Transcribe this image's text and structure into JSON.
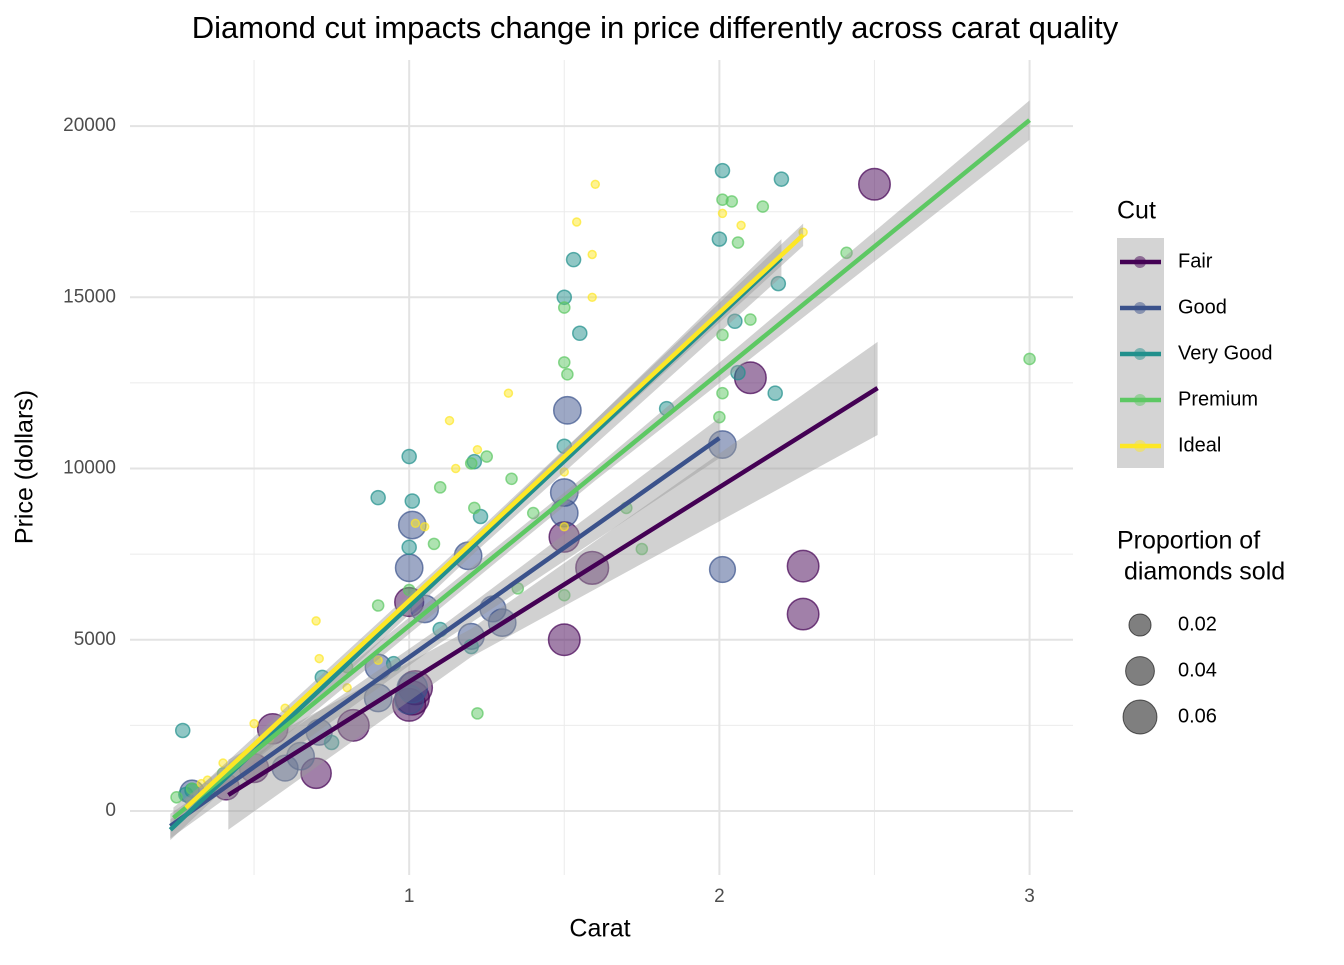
{
  "chart_data": {
    "type": "scatter",
    "title": "Diamond cut impacts change in price differently across carat quality",
    "x_label": "Carat",
    "y_label": "Price (dollars)",
    "xlim": [
      0.1,
      3.14
    ],
    "ylim": [
      -1870,
      21930
    ],
    "xticks": [
      1,
      2,
      3
    ],
    "yticks": [
      0,
      5000,
      10000,
      15000,
      20000
    ],
    "xminor": [
      0.5,
      1.5,
      2.5
    ],
    "yminor": [
      2500,
      7500,
      12500,
      17500
    ],
    "grid": true,
    "legend_title": "Cut",
    "size_legend_title": [
      "Proportion of",
      " diamonds sold"
    ],
    "size_legend": [
      0.02,
      0.04,
      0.06
    ],
    "series": [
      {
        "name": "Fair",
        "color": "#440154",
        "x": [
          2.5,
          2.1,
          2.27,
          2.27,
          1.5,
          1.59,
          1.5,
          1.01,
          1.0,
          1.02,
          0.7,
          0.82,
          0.56,
          0.5,
          0.41,
          1.0
        ],
        "values": [
          18300,
          12650,
          7150,
          5750,
          8000,
          7100,
          5000,
          3300,
          3100,
          3600,
          1100,
          2500,
          2400,
          1250,
          700,
          6100
        ],
        "sizes": [
          0.05,
          0.05,
          0.05,
          0.05,
          0.045,
          0.055,
          0.05,
          0.06,
          0.055,
          0.06,
          0.045,
          0.05,
          0.045,
          0.04,
          0.03,
          0.04
        ],
        "fit": {
          "x": [
            0.417,
            1.2,
            2.51
          ],
          "y": [
            467,
            4912,
            12350
          ],
          "lower": [
            -550,
            4500,
            10980
          ],
          "upper": [
            1500,
            5320,
            13700
          ]
        }
      },
      {
        "name": "Good",
        "color": "#3b528b",
        "x": [
          1.51,
          2.01,
          2.01,
          1.5,
          1.5,
          1.01,
          1.0,
          1.19,
          1.05,
          1.3,
          1.27,
          1.01,
          1.0,
          0.9,
          0.6,
          0.65,
          0.71,
          0.3,
          0.9,
          1.2
        ],
        "values": [
          11700,
          10700,
          7050,
          9300,
          8700,
          8350,
          7100,
          7450,
          5900,
          5500,
          5900,
          3600,
          3250,
          3300,
          1250,
          1600,
          2300,
          550,
          4200,
          5100
        ],
        "sizes": [
          0.035,
          0.035,
          0.03,
          0.035,
          0.035,
          0.035,
          0.035,
          0.035,
          0.035,
          0.035,
          0.03,
          0.045,
          0.04,
          0.035,
          0.03,
          0.035,
          0.03,
          0.025,
          0.03,
          0.03
        ],
        "fit": {
          "x": [
            0.23,
            1.1,
            2.0
          ],
          "y": [
            -440,
            5129,
            10890
          ],
          "lower": [
            -800,
            4900,
            10300
          ],
          "upper": [
            -80,
            5360,
            11480
          ]
        }
      },
      {
        "name": "Very Good",
        "color": "#21908c",
        "x": [
          2.01,
          2.2,
          2.0,
          1.53,
          1.5,
          1.55,
          2.05,
          2.19,
          1.83,
          2.18,
          2.06,
          1.5,
          1.0,
          0.9,
          1.01,
          1.21,
          1.23,
          1.0,
          1.2,
          0.72,
          0.27,
          0.75,
          0.3,
          0.28,
          1.1,
          0.95
        ],
        "values": [
          18700,
          18450,
          16700,
          16100,
          15000,
          13950,
          14300,
          15400,
          11750,
          12200,
          12800,
          10650,
          10350,
          9150,
          9050,
          10200,
          8600,
          7700,
          4800,
          3900,
          2350,
          2000,
          600,
          480,
          5300,
          4300
        ],
        "sizes": [
          0.005,
          0.005,
          0.005,
          0.005,
          0.005,
          0.005,
          0.005,
          0.005,
          0.005,
          0.005,
          0.005,
          0.005,
          0.005,
          0.005,
          0.005,
          0.005,
          0.005,
          0.005,
          0.005,
          0.005,
          0.005,
          0.005,
          0.005,
          0.005,
          0.005,
          0.005
        ],
        "fit": {
          "x": [
            0.23,
            1.2,
            2.2
          ],
          "y": [
            -550,
            7673,
            16150
          ],
          "lower": [
            -850,
            7450,
            15600
          ],
          "upper": [
            -250,
            7900,
            16700
          ]
        }
      },
      {
        "name": "Premium",
        "color": "#5dc863",
        "x": [
          3.0,
          2.41,
          2.01,
          2.04,
          2.14,
          2.06,
          2.1,
          2.01,
          1.5,
          1.5,
          1.51,
          2.0,
          2.01,
          1.7,
          1.75,
          1.5,
          1.33,
          1.25,
          1.2,
          1.1,
          1.21,
          1.4,
          1.22,
          1.08,
          1.0,
          0.9,
          0.8,
          0.6,
          0.4,
          0.3,
          0.25,
          1.35
        ],
        "values": [
          13200,
          16300,
          17850,
          17800,
          17650,
          16600,
          14350,
          13900,
          14700,
          13100,
          12750,
          11500,
          12200,
          8850,
          7650,
          6300,
          9700,
          10350,
          10150,
          9450,
          8850,
          8700,
          2850,
          7800,
          6450,
          6000,
          4200,
          2600,
          1100,
          650,
          400,
          6500
        ],
        "sizes": [
          0.002,
          0.002,
          0.002,
          0.002,
          0.002,
          0.002,
          0.002,
          0.002,
          0.002,
          0.002,
          0.002,
          0.002,
          0.002,
          0.002,
          0.002,
          0.002,
          0.002,
          0.002,
          0.002,
          0.002,
          0.002,
          0.002,
          0.002,
          0.002,
          0.002,
          0.002,
          0.002,
          0.002,
          0.002,
          0.002,
          0.002,
          0.002
        ],
        "fit": {
          "x": [
            0.24,
            1.6,
            3.0
          ],
          "y": [
            -200,
            9840,
            20175
          ],
          "lower": [
            -500,
            9650,
            19600
          ],
          "upper": [
            100,
            10030,
            20750
          ]
        }
      },
      {
        "name": "Ideal",
        "color": "#fde725",
        "x": [
          1.6,
          1.54,
          1.59,
          1.59,
          2.01,
          2.07,
          2.27,
          1.32,
          1.13,
          1.22,
          1.15,
          1.02,
          1.05,
          0.7,
          0.71,
          0.9,
          0.6,
          0.5,
          0.4,
          0.35,
          0.33,
          1.5,
          1.5,
          0.8,
          0.55
        ],
        "values": [
          18300,
          17200,
          16250,
          15000,
          17450,
          17100,
          16900,
          12200,
          11400,
          10550,
          10000,
          8400,
          8300,
          5550,
          4450,
          4400,
          3000,
          2550,
          1400,
          900,
          800,
          9900,
          8300,
          3600,
          2100
        ],
        "sizes": [
          0.0003,
          0.0003,
          0.0003,
          0.0003,
          0.0003,
          0.0003,
          0.0003,
          0.0003,
          0.0003,
          0.0003,
          0.0003,
          0.0003,
          0.0003,
          0.0003,
          0.0003,
          0.0003,
          0.0003,
          0.0003,
          0.0003,
          0.0003,
          0.0003,
          0.0003,
          0.0003,
          0.0003,
          0.0003
        ],
        "fit": {
          "x": [
            0.28,
            1.2,
            2.27
          ],
          "y": [
            90,
            7824,
            16820
          ],
          "lower": [
            -150,
            7650,
            16500
          ],
          "upper": [
            330,
            8000,
            17150
          ]
        }
      }
    ]
  }
}
